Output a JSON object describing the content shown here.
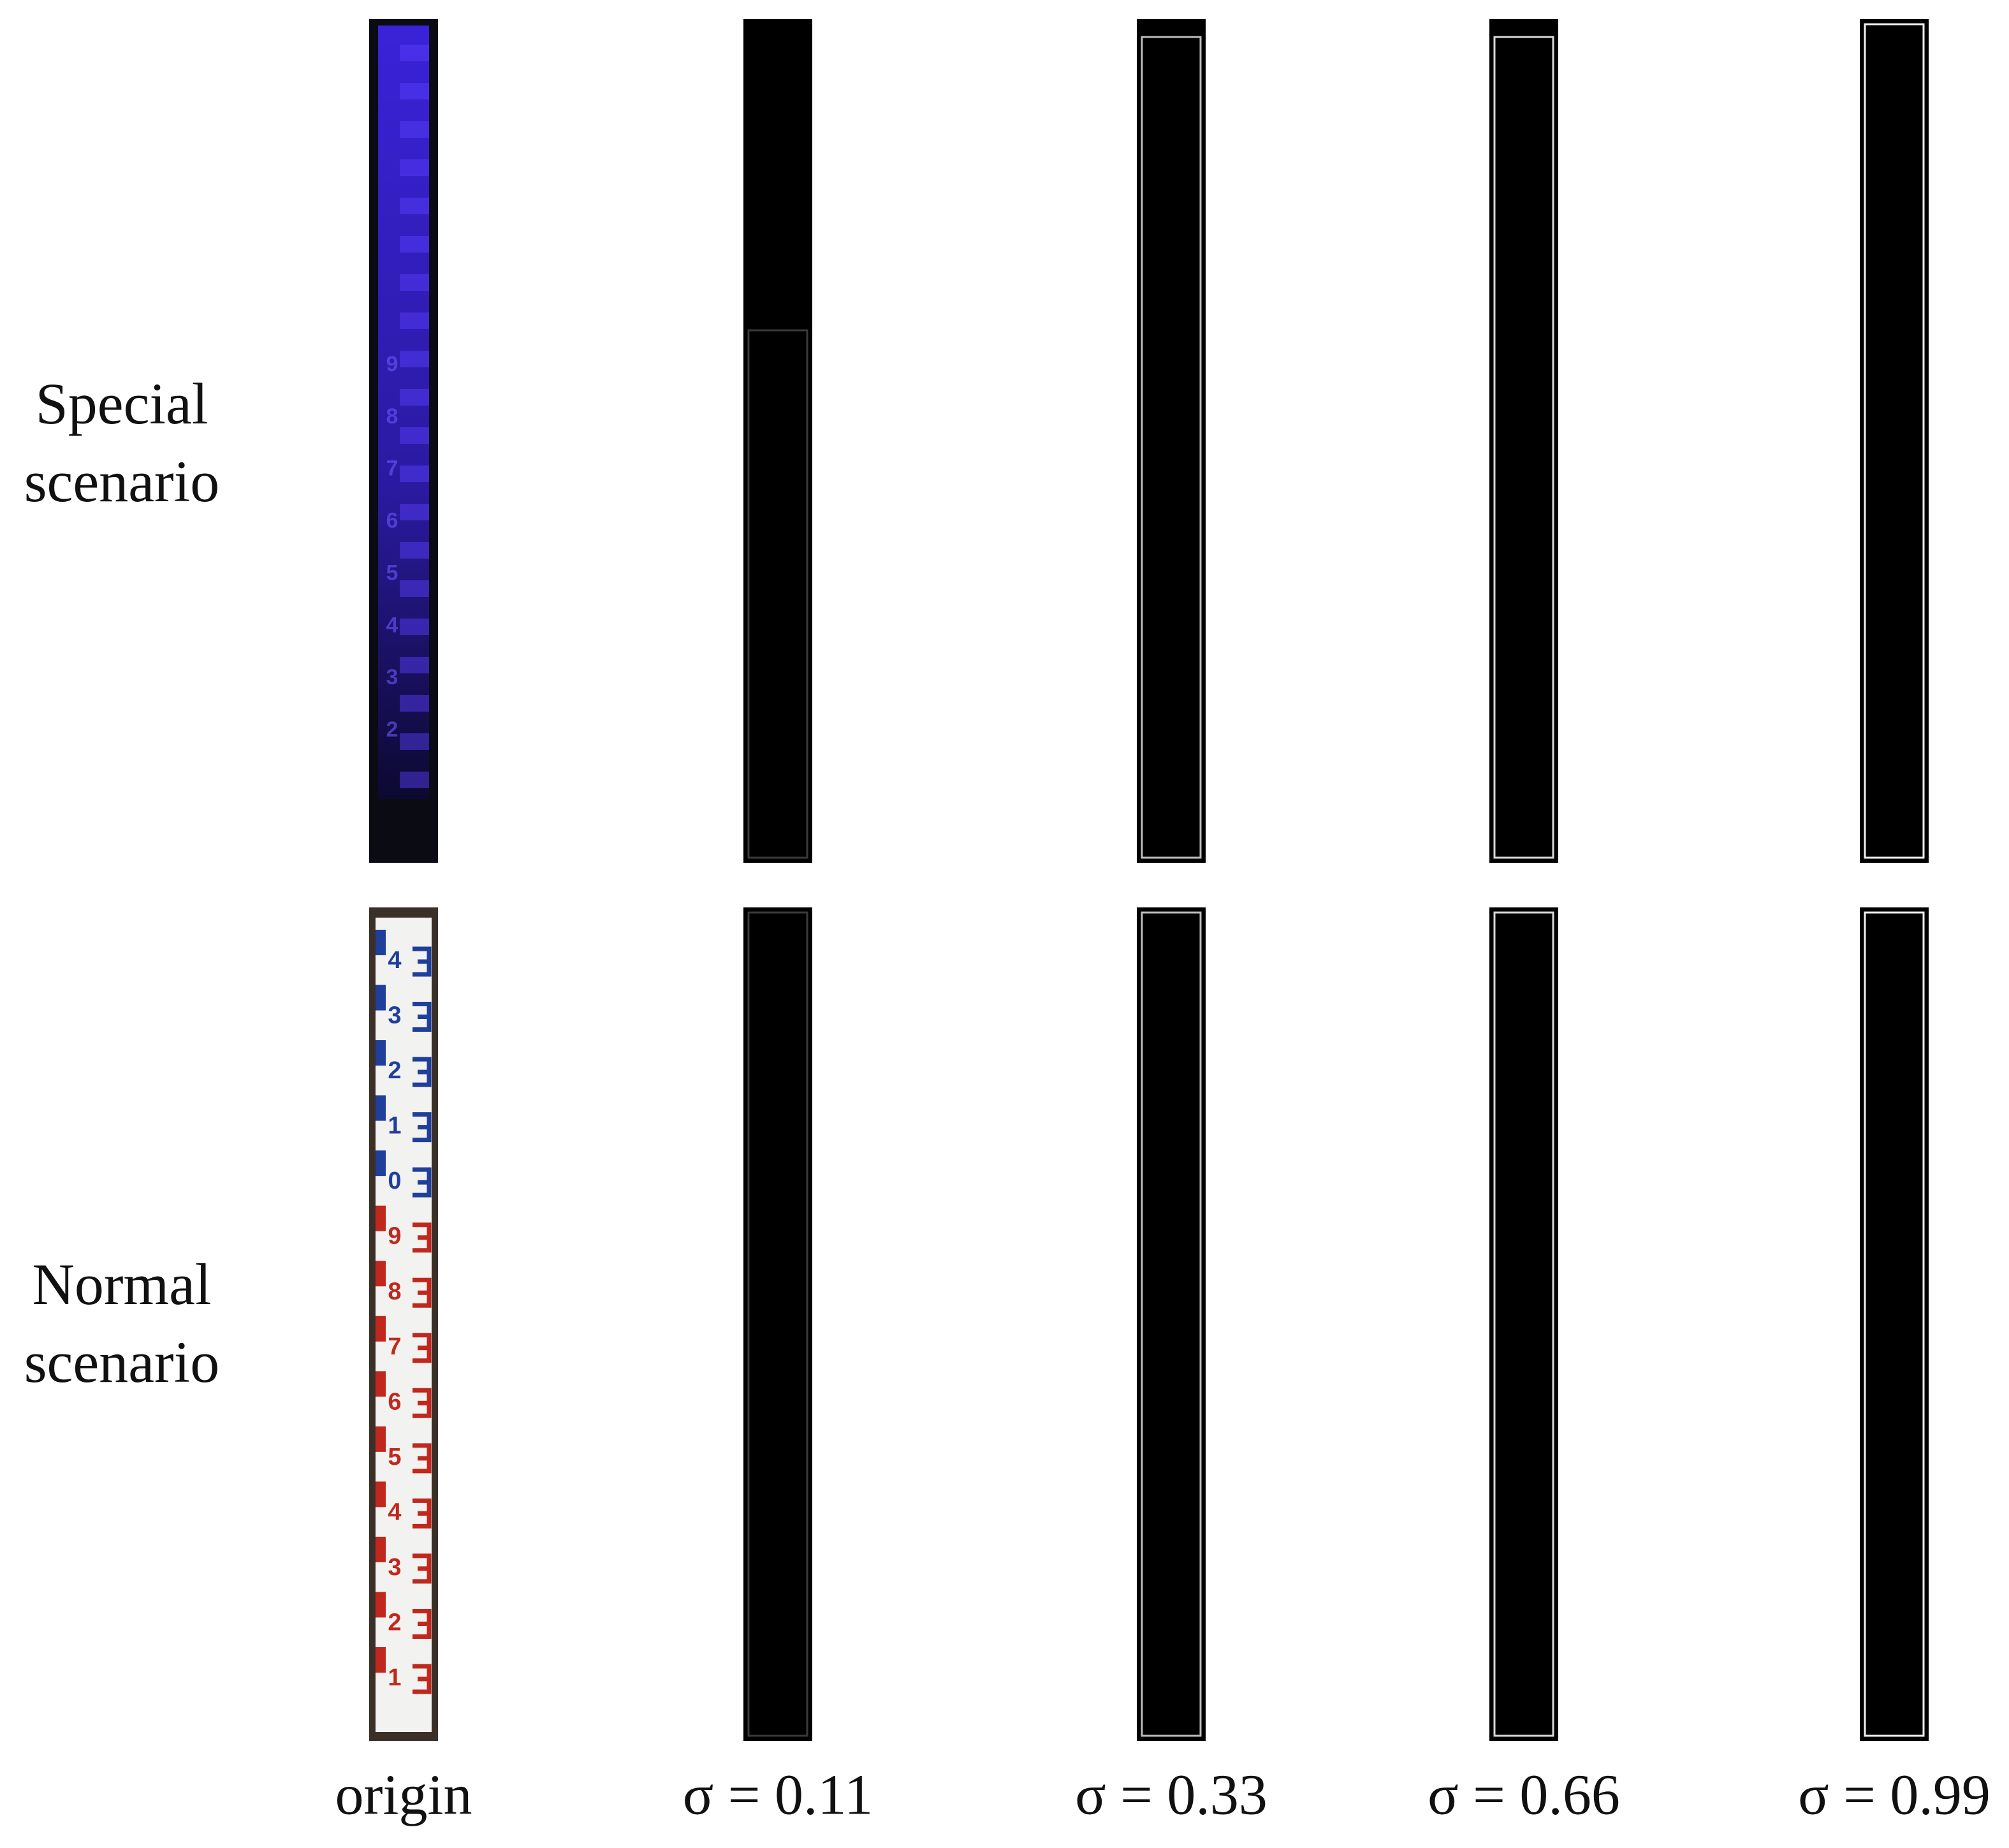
{
  "row_labels": [
    "Special scenario",
    "Normal scenario"
  ],
  "column_labels": [
    "origin",
    "σ = 0.11",
    "σ = 0.33",
    "σ = 0.66",
    "σ = 0.99"
  ],
  "ruler_digits": {
    "special": [
      "9",
      "8",
      "7",
      "6",
      "5",
      "4",
      "3",
      "2"
    ],
    "normal": [
      "4",
      "3",
      "2",
      "1",
      "0",
      "9",
      "8",
      "7",
      "6",
      "5",
      "4",
      "3",
      "2",
      "1"
    ]
  }
}
